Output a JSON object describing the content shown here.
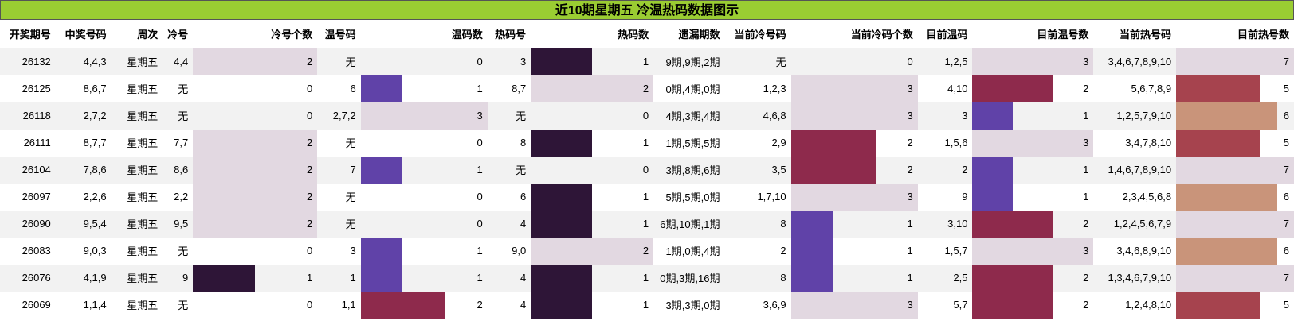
{
  "title": "近10期星期五 冷温热码数据图示",
  "headers": [
    "开奖期号",
    "中奖号码",
    "周次",
    "冷号",
    "冷号个数",
    "温号码",
    "温码数",
    "热码号",
    "热码数",
    "遗漏期数",
    "当前冷号码",
    "当前冷码个数",
    "目前温码",
    "目前温号数",
    "当前热号码",
    "目前热号数"
  ],
  "colors": {
    "light": "#e2d8e1",
    "dark": "#2e1537",
    "purple": "#6042a8",
    "maroon": "#8e2a4c",
    "red": "#a6434e",
    "tan": "#c9947a",
    "header_bg": "#9acd32"
  },
  "rows": [
    {
      "cells": [
        "26132",
        "4,4,3",
        "星期五",
        "4,4",
        "2",
        "无",
        "0",
        "3",
        "1",
        "9期,9期,2期",
        "无",
        "0",
        "1,2,5",
        "3",
        "3,4,6,7,8,9,10",
        "7"
      ],
      "bars": {
        "c4": {
          "color": "light",
          "frac": 1
        },
        "c6": null,
        "c8": {
          "color": "dark",
          "frac": 0.5
        },
        "c11": null,
        "c13": {
          "color": "light",
          "frac": 1
        },
        "c15": {
          "color": "light",
          "frac": 1
        }
      }
    },
    {
      "cells": [
        "26125",
        "8,6,7",
        "星期五",
        "无",
        "0",
        "6",
        "1",
        "8,7",
        "2",
        "0期,4期,0期",
        "1,2,3",
        "3",
        "4,10",
        "2",
        "5,6,7,8,9",
        "5"
      ],
      "bars": {
        "c4": null,
        "c6": {
          "color": "purple",
          "frac": 0.33
        },
        "c8": {
          "color": "light",
          "frac": 1
        },
        "c11": {
          "color": "light",
          "frac": 1
        },
        "c13": {
          "color": "maroon",
          "frac": 0.67
        },
        "c15": {
          "color": "red",
          "frac": 0.71
        }
      }
    },
    {
      "cells": [
        "26118",
        "2,7,2",
        "星期五",
        "无",
        "0",
        "2,7,2",
        "3",
        "无",
        "0",
        "4期,3期,4期",
        "4,6,8",
        "3",
        "3",
        "1",
        "1,2,5,7,9,10",
        "6"
      ],
      "bars": {
        "c4": null,
        "c6": {
          "color": "light",
          "frac": 1
        },
        "c8": null,
        "c11": {
          "color": "light",
          "frac": 1
        },
        "c13": {
          "color": "purple",
          "frac": 0.33
        },
        "c15": {
          "color": "tan",
          "frac": 0.86
        }
      }
    },
    {
      "cells": [
        "26111",
        "8,7,7",
        "星期五",
        "7,7",
        "2",
        "无",
        "0",
        "8",
        "1",
        "1期,5期,5期",
        "2,9",
        "2",
        "1,5,6",
        "3",
        "3,4,7,8,10",
        "5"
      ],
      "bars": {
        "c4": {
          "color": "light",
          "frac": 1
        },
        "c6": null,
        "c8": {
          "color": "dark",
          "frac": 0.5
        },
        "c11": {
          "color": "maroon",
          "frac": 0.67
        },
        "c13": {
          "color": "light",
          "frac": 1
        },
        "c15": {
          "color": "red",
          "frac": 0.71
        }
      }
    },
    {
      "cells": [
        "26104",
        "7,8,6",
        "星期五",
        "8,6",
        "2",
        "7",
        "1",
        "无",
        "0",
        "3期,8期,6期",
        "3,5",
        "2",
        "2",
        "1",
        "1,4,6,7,8,9,10",
        "7"
      ],
      "bars": {
        "c4": {
          "color": "light",
          "frac": 1
        },
        "c6": {
          "color": "purple",
          "frac": 0.33
        },
        "c8": null,
        "c11": {
          "color": "maroon",
          "frac": 0.67
        },
        "c13": {
          "color": "purple",
          "frac": 0.33
        },
        "c15": {
          "color": "light",
          "frac": 1
        }
      }
    },
    {
      "cells": [
        "26097",
        "2,2,6",
        "星期五",
        "2,2",
        "2",
        "无",
        "0",
        "6",
        "1",
        "5期,5期,0期",
        "1,7,10",
        "3",
        "9",
        "1",
        "2,3,4,5,6,8",
        "6"
      ],
      "bars": {
        "c4": {
          "color": "light",
          "frac": 1
        },
        "c6": null,
        "c8": {
          "color": "dark",
          "frac": 0.5
        },
        "c11": {
          "color": "light",
          "frac": 1
        },
        "c13": {
          "color": "purple",
          "frac": 0.33
        },
        "c15": {
          "color": "tan",
          "frac": 0.86
        }
      }
    },
    {
      "cells": [
        "26090",
        "9,5,4",
        "星期五",
        "9,5",
        "2",
        "无",
        "0",
        "4",
        "1",
        "6期,10期,1期",
        "8",
        "1",
        "3,10",
        "2",
        "1,2,4,5,6,7,9",
        "7"
      ],
      "bars": {
        "c4": {
          "color": "light",
          "frac": 1
        },
        "c6": null,
        "c8": {
          "color": "dark",
          "frac": 0.5
        },
        "c11": {
          "color": "purple",
          "frac": 0.33
        },
        "c13": {
          "color": "maroon",
          "frac": 0.67
        },
        "c15": {
          "color": "light",
          "frac": 1
        }
      }
    },
    {
      "cells": [
        "26083",
        "9,0,3",
        "星期五",
        "无",
        "0",
        "3",
        "1",
        "9,0",
        "2",
        "1期,0期,4期",
        "2",
        "1",
        "1,5,7",
        "3",
        "3,4,6,8,9,10",
        "6"
      ],
      "bars": {
        "c4": null,
        "c6": {
          "color": "purple",
          "frac": 0.33
        },
        "c8": {
          "color": "light",
          "frac": 1
        },
        "c11": {
          "color": "purple",
          "frac": 0.33
        },
        "c13": {
          "color": "light",
          "frac": 1
        },
        "c15": {
          "color": "tan",
          "frac": 0.86
        }
      }
    },
    {
      "cells": [
        "26076",
        "4,1,9",
        "星期五",
        "9",
        "1",
        "1",
        "1",
        "4",
        "1",
        "0期,3期,16期",
        "8",
        "1",
        "2,5",
        "2",
        "1,3,4,6,7,9,10",
        "7"
      ],
      "bars": {
        "c4": {
          "color": "dark",
          "frac": 0.5
        },
        "c6": {
          "color": "purple",
          "frac": 0.33
        },
        "c8": {
          "color": "dark",
          "frac": 0.5
        },
        "c11": {
          "color": "purple",
          "frac": 0.33
        },
        "c13": {
          "color": "maroon",
          "frac": 0.67
        },
        "c15": {
          "color": "light",
          "frac": 1
        }
      }
    },
    {
      "cells": [
        "26069",
        "1,1,4",
        "星期五",
        "无",
        "0",
        "1,1",
        "2",
        "4",
        "1",
        "3期,3期,0期",
        "3,6,9",
        "3",
        "5,7",
        "2",
        "1,2,4,8,10",
        "5"
      ],
      "bars": {
        "c4": null,
        "c6": {
          "color": "maroon",
          "frac": 0.67
        },
        "c8": {
          "color": "dark",
          "frac": 0.5
        },
        "c11": {
          "color": "light",
          "frac": 1
        },
        "c13": {
          "color": "maroon",
          "frac": 0.67
        },
        "c15": {
          "color": "red",
          "frac": 0.71
        }
      }
    }
  ]
}
